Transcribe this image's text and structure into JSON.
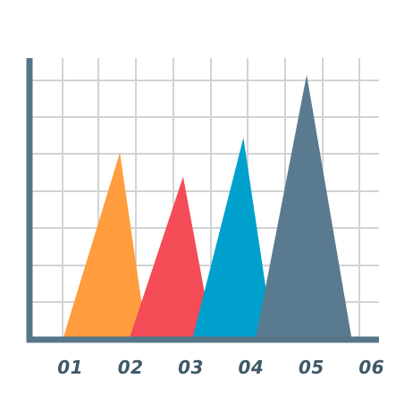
{
  "chart_data": {
    "type": "area",
    "title": "",
    "xlabel": "",
    "ylabel": "",
    "categories": [
      "01",
      "02",
      "03",
      "04",
      "05",
      "06"
    ],
    "series": [
      {
        "peak_x": 2.0,
        "base_start": 1.05,
        "base_end": 2.45,
        "value": 5.05,
        "color": "#FF9D3F"
      },
      {
        "peak_x": 3.05,
        "base_start": 2.15,
        "base_end": 3.55,
        "value": 4.4,
        "color": "#F44C56"
      },
      {
        "peak_x": 4.05,
        "base_start": 3.2,
        "base_end": 4.55,
        "value": 5.45,
        "color": "#00A0CC"
      },
      {
        "peak_x": 5.1,
        "base_start": 4.25,
        "base_end": 5.85,
        "value": 7.15,
        "color": "#5A7A8F"
      }
    ],
    "xlim": [
      0.5,
      6.3
    ],
    "ylim": [
      0,
      7.6
    ],
    "grid": true,
    "legend": "none",
    "colors": {
      "axis": "#557688",
      "grid": "#D3D3D3",
      "tick_text": "#3E5867"
    }
  }
}
